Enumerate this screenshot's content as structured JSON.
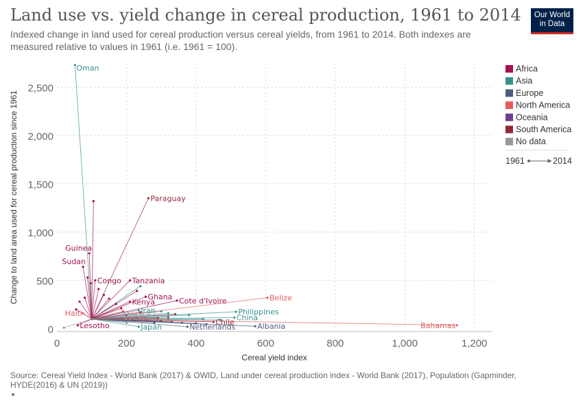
{
  "header": {
    "title": "Land use vs. yield change in cereal production, 1961 to 2014",
    "subtitle": "Indexed change in land used for cereal production versus cereal yields, from 1961 to 2014. Both indexes are measured relative to values in 1961 (i.e. 1961 = 100).",
    "logo_line1": "Our World",
    "logo_line2": "in Data"
  },
  "footer": {
    "source": "Source: Cereal Yield Index - World Bank (2017) & OWID, Land under cereal production index - World Bank (2017), Population (Gapminder, HYDE(2016) & UN (2019))"
  },
  "colors": {
    "Africa": "#a2114f",
    "Asia": "#38918d",
    "Europe": "#4c5c7e",
    "North America": "#e35d5d",
    "Oceania": "#6d3e91",
    "South America": "#96283c",
    "No data": "#999999",
    "grid": "#dddddd",
    "axis_text": "#666666"
  },
  "chart_data": {
    "type": "scatter",
    "subtype": "connected-start-end-arrows",
    "xlabel": "Cereal yield index",
    "ylabel": "Change to land area used for cereal production since 1961",
    "xlim": [
      0,
      1250
    ],
    "ylim": [
      -30,
      2750
    ],
    "xticks": [
      0,
      200,
      400,
      600,
      800,
      1000,
      1200
    ],
    "xtick_labels": [
      "0",
      "200",
      "400",
      "600",
      "800",
      "1,000",
      "1,200"
    ],
    "yticks": [
      0,
      500,
      1000,
      1500,
      2000,
      2500
    ],
    "ytick_labels": [
      "0",
      "500",
      "1,000",
      "1,500",
      "2,000",
      "2,500"
    ],
    "grid": true,
    "legend_placement": "right",
    "legend": {
      "entries": [
        "Africa",
        "Asia",
        "Europe",
        "North America",
        "Oceania",
        "South America",
        "No data"
      ],
      "range_start": "1961",
      "range_end": "2014"
    },
    "start": [
      100,
      100
    ],
    "labeled_series": [
      {
        "name": "Oman",
        "region": "Asia",
        "x": 52,
        "y": 2730
      },
      {
        "name": "Paraguay",
        "region": "South America",
        "x": 263,
        "y": 1350
      },
      {
        "name": "Guinea",
        "region": "Africa",
        "x": 93,
        "y": 780
      },
      {
        "name": "Sudan",
        "region": "Africa",
        "x": 75,
        "y": 640
      },
      {
        "name": "Congo",
        "region": "Africa",
        "x": 110,
        "y": 500
      },
      {
        "name": "Tanzania",
        "region": "Africa",
        "x": 210,
        "y": 500
      },
      {
        "name": "Belize",
        "region": "North America",
        "x": 605,
        "y": 320
      },
      {
        "name": "Ghana",
        "region": "Africa",
        "x": 255,
        "y": 330
      },
      {
        "name": "Cote d'Ivoire",
        "region": "Africa",
        "x": 345,
        "y": 290
      },
      {
        "name": "Kenya",
        "region": "Africa",
        "x": 210,
        "y": 280
      },
      {
        "name": "Iran",
        "region": "Asia",
        "x": 235,
        "y": 190
      },
      {
        "name": "Haiti",
        "region": "North America",
        "x": 75,
        "y": 160
      },
      {
        "name": "Philippines",
        "region": "Asia",
        "x": 515,
        "y": 175
      },
      {
        "name": "World",
        "region": "No data",
        "x": 280,
        "y": 135
      },
      {
        "name": "China",
        "region": "Asia",
        "x": 510,
        "y": 115
      },
      {
        "name": "Chile",
        "region": "South America",
        "x": 450,
        "y": 70
      },
      {
        "name": "Lesotho",
        "region": "Africa",
        "x": 60,
        "y": 35
      },
      {
        "name": "Japan",
        "region": "Asia",
        "x": 235,
        "y": 20
      },
      {
        "name": "Netherlands",
        "region": "Europe",
        "x": 375,
        "y": 20
      },
      {
        "name": "Albania",
        "region": "Europe",
        "x": 570,
        "y": 25
      },
      {
        "name": "Bahamas",
        "region": "North America",
        "x": 1150,
        "y": 35
      }
    ],
    "unlabeled_series": [
      {
        "region": "Africa",
        "x": 105,
        "y": 1320
      },
      {
        "region": "Africa",
        "x": 88,
        "y": 530
      },
      {
        "region": "Africa",
        "x": 97,
        "y": 470
      },
      {
        "region": "Africa",
        "x": 120,
        "y": 410
      },
      {
        "region": "Africa",
        "x": 135,
        "y": 350
      },
      {
        "region": "Africa",
        "x": 150,
        "y": 310
      },
      {
        "region": "Africa",
        "x": 170,
        "y": 255
      },
      {
        "region": "Africa",
        "x": 65,
        "y": 280
      },
      {
        "region": "Africa",
        "x": 80,
        "y": 320
      },
      {
        "region": "Africa",
        "x": 55,
        "y": 200
      },
      {
        "region": "Africa",
        "x": 185,
        "y": 210
      },
      {
        "region": "Africa",
        "x": 230,
        "y": 390
      },
      {
        "region": "Asia",
        "x": 240,
        "y": 440
      },
      {
        "region": "Asia",
        "x": 300,
        "y": 180
      },
      {
        "region": "Asia",
        "x": 320,
        "y": 160
      },
      {
        "region": "Asia",
        "x": 380,
        "y": 140
      },
      {
        "region": "Asia",
        "x": 420,
        "y": 100
      },
      {
        "region": "Asia",
        "x": 470,
        "y": 90
      },
      {
        "region": "Europe",
        "x": 260,
        "y": 95
      },
      {
        "region": "Europe",
        "x": 300,
        "y": 80
      },
      {
        "region": "Europe",
        "x": 330,
        "y": 70
      },
      {
        "region": "Europe",
        "x": 360,
        "y": 60
      },
      {
        "region": "Europe",
        "x": 400,
        "y": 55
      },
      {
        "region": "Europe",
        "x": 430,
        "y": 45
      },
      {
        "region": "Europe",
        "x": 320,
        "y": 120
      },
      {
        "region": "Europe",
        "x": 280,
        "y": 60
      },
      {
        "region": "North America",
        "x": 190,
        "y": 180
      },
      {
        "region": "North America",
        "x": 250,
        "y": 120
      },
      {
        "region": "North America",
        "x": 320,
        "y": 95
      },
      {
        "region": "South America",
        "x": 240,
        "y": 170
      },
      {
        "region": "South America",
        "x": 290,
        "y": 110
      },
      {
        "region": "South America",
        "x": 340,
        "y": 150
      },
      {
        "region": "Oceania",
        "x": 200,
        "y": 140
      },
      {
        "region": "Oceania",
        "x": 230,
        "y": 110
      },
      {
        "region": "No data",
        "x": 150,
        "y": 90
      },
      {
        "region": "No data",
        "x": 200,
        "y": 60
      },
      {
        "region": "No data",
        "x": 20,
        "y": 10
      }
    ]
  }
}
